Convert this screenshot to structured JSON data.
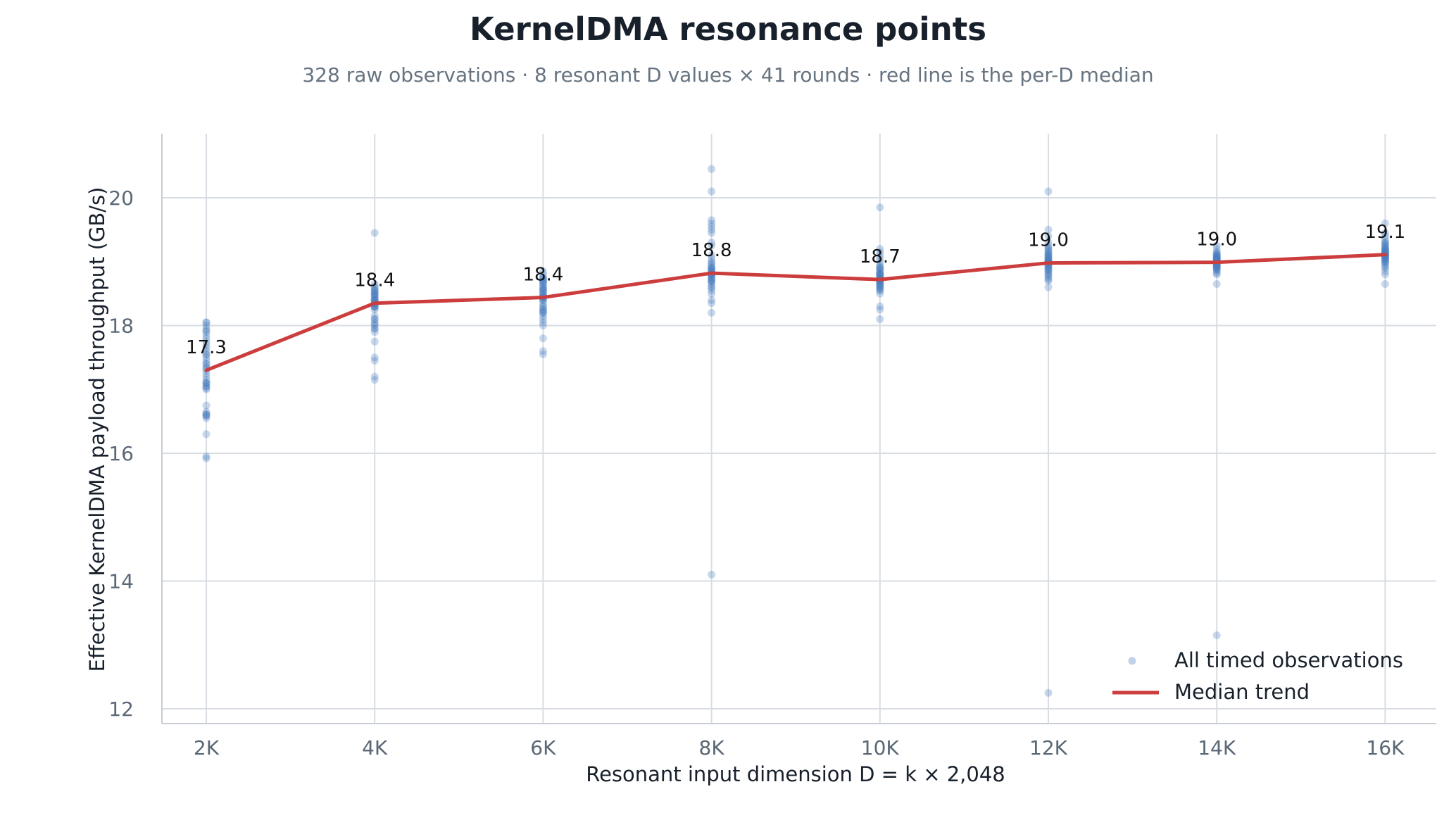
{
  "chart_data": {
    "type": "scatter",
    "title": "KernelDMA resonance points",
    "subtitle": "328 raw observations · 8 resonant D values × 41 rounds · red line is the per-D median",
    "xlabel": "Resonant input dimension D = k × 2,048",
    "ylabel": "Effective KernelDMA payload throughput (GB/s)",
    "categories": [
      "2K",
      "4K",
      "6K",
      "8K",
      "10K",
      "12K",
      "14K",
      "16K"
    ],
    "ylim": [
      11.8,
      21.0
    ],
    "yticks": [
      "12",
      "14",
      "16",
      "18",
      "20"
    ],
    "grid": true,
    "legend_position": "bottom-right",
    "series": [
      {
        "name": "All timed observations",
        "type": "scatter",
        "points": [
          [
            17.45,
            17.1,
            16.6,
            17.9,
            16.55,
            17.05,
            17.7,
            17.4,
            17.05,
            18.05,
            16.3,
            16.75,
            17.95,
            17.2,
            15.95,
            17.65,
            17.1,
            16.6,
            17.0,
            18.05,
            17.3,
            15.92,
            17.55,
            16.65,
            17.85,
            17.1,
            17.35,
            16.58,
            17.8,
            17.5,
            18.0,
            17.15,
            16.62,
            17.25,
            17.6,
            17.92,
            17.4,
            17.02,
            17.75,
            17.55,
            17.33
          ],
          [
            18.3,
            19.45,
            17.5,
            18.55,
            17.95,
            17.2,
            18.4,
            18.1,
            18.5,
            18.35,
            17.15,
            18.05,
            17.75,
            18.6,
            18.3,
            17.95,
            18.45,
            18.55,
            18.0,
            18.25,
            17.45,
            18.4,
            18.35,
            18.65,
            17.9,
            18.5,
            18.3,
            18.1,
            18.42,
            18.6,
            18.02,
            18.38,
            18.48,
            18.28,
            18.55,
            18.35,
            18.15,
            18.5,
            18.45,
            18.32,
            18.4
          ],
          [
            18.55,
            18.4,
            17.6,
            18.7,
            18.25,
            17.55,
            18.85,
            18.2,
            18.6,
            18.45,
            18.05,
            18.75,
            18.3,
            17.8,
            18.65,
            18.1,
            18.5,
            18.2,
            18.75,
            18.0,
            18.45,
            18.55,
            18.35,
            18.7,
            18.8,
            18.25,
            18.6,
            18.4,
            18.15,
            18.5,
            18.65,
            18.22,
            18.72,
            18.45,
            18.3,
            18.55,
            18.68,
            18.42,
            18.48,
            18.58,
            18.44
          ],
          [
            18.8,
            20.45,
            20.1,
            19.6,
            18.2,
            19.65,
            14.1,
            18.5,
            19.3,
            18.75,
            18.35,
            19.5,
            19.0,
            18.6,
            18.9,
            19.55,
            18.4,
            19.1,
            18.7,
            18.85,
            19.25,
            18.55,
            18.95,
            18.65,
            19.45,
            18.8,
            18.72,
            18.9,
            18.78,
            18.82,
            18.68,
            19.05,
            18.88,
            18.6,
            18.75,
            18.92,
            18.84,
            18.7,
            18.98,
            18.8,
            18.86
          ],
          [
            19.85,
            18.7,
            18.1,
            18.3,
            19.2,
            18.55,
            18.9,
            18.25,
            18.6,
            19.1,
            18.8,
            18.5,
            18.95,
            18.65,
            18.75,
            19.0,
            18.85,
            18.6,
            18.7,
            19.15,
            18.55,
            18.8,
            18.9,
            18.68,
            18.78,
            18.62,
            19.05,
            18.72,
            18.82,
            18.66,
            18.74,
            18.88,
            18.58,
            18.92,
            18.7,
            18.76,
            18.64,
            18.8,
            18.84,
            18.71,
            18.73
          ],
          [
            20.1,
            12.25,
            19.5,
            18.6,
            19.25,
            18.75,
            19.15,
            18.9,
            19.05,
            18.8,
            19.4,
            18.7,
            19.0,
            19.2,
            18.85,
            19.1,
            18.95,
            18.78,
            19.3,
            19.02,
            18.88,
            19.12,
            18.92,
            19.08,
            18.82,
            19.18,
            18.98,
            18.72,
            19.22,
            19.04,
            18.94,
            19.14,
            18.86,
            19.06,
            19.0,
            18.96,
            19.1,
            18.9,
            19.02,
            18.98,
            19.0
          ],
          [
            13.15,
            18.65,
            19.25,
            18.9,
            19.1,
            18.8,
            19.15,
            19.0,
            18.95,
            19.05,
            18.85,
            19.2,
            18.95,
            19.1,
            18.9,
            19.0,
            19.05,
            18.82,
            19.12,
            18.98,
            19.02,
            18.92,
            19.08,
            18.88,
            19.14,
            18.96,
            19.04,
            18.94,
            19.06,
            19.0,
            18.97,
            19.03,
            18.99,
            19.01,
            18.93,
            19.07,
            18.91,
            19.09,
            18.87,
            19.0,
            19.0
          ],
          [
            19.6,
            18.65,
            19.3,
            18.8,
            19.45,
            19.0,
            19.15,
            18.9,
            19.25,
            19.05,
            19.35,
            18.95,
            19.1,
            19.2,
            18.85,
            19.4,
            19.0,
            19.15,
            19.3,
            19.1,
            19.05,
            18.98,
            19.22,
            19.12,
            19.08,
            19.18,
            19.02,
            19.28,
            19.14,
            19.06,
            19.2,
            18.92,
            19.16,
            19.1,
            19.24,
            19.04,
            19.12,
            19.18,
            19.08,
            19.1,
            19.11
          ]
        ]
      },
      {
        "name": "Median trend",
        "type": "line",
        "values": [
          17.3,
          18.35,
          18.44,
          18.82,
          18.72,
          18.98,
          18.99,
          19.11
        ],
        "labels": [
          "17.3",
          "18.4",
          "18.4",
          "18.8",
          "18.7",
          "19.0",
          "19.0",
          "19.1"
        ]
      }
    ],
    "colors": {
      "scatter": "#4a7fbf",
      "line": "#cc3d3d",
      "grid": "#d8dde3",
      "axis": "#c8cdd3",
      "tick_text": "#5a6775",
      "title_text": "#17202b",
      "subtitle_text": "#667380"
    }
  }
}
